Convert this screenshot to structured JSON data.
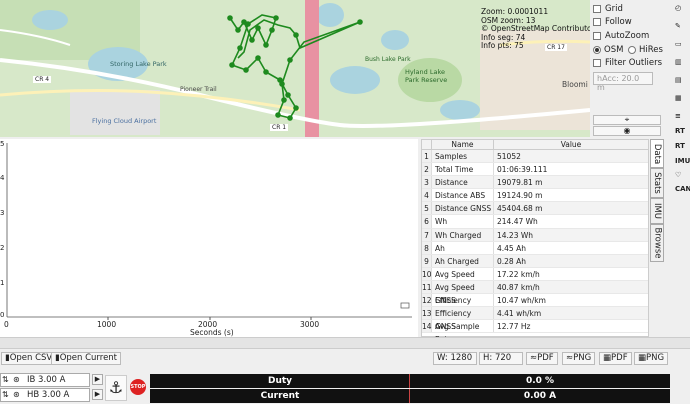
{
  "map": {
    "labels": [
      "Storing Lake Park",
      "CR 4",
      "Pioneer Trail",
      "Flying Cloud Airport",
      "Hyland Lake Park Reserve",
      "Bush Lake Park",
      "CR 1",
      "CR 17",
      "Bloomi"
    ],
    "info": [
      "Zoom: 0.0001011",
      "OSM zoom: 13",
      "© OpenStreetMap Contributors",
      "Info seg: 74",
      "Info pts: 75"
    ]
  },
  "controls": {
    "grid": "Grid",
    "follow": "Follow",
    "autozoom": "AutoZoom",
    "osm": "OSM",
    "hires": "HiRes",
    "filter": "Filter Outliers",
    "hacc": "hAcc: 20.0 m"
  },
  "plot": {
    "yticks": [
      "5",
      "4",
      "3",
      "2",
      "1",
      "0"
    ],
    "xticks": [
      "0",
      "1000",
      "2000",
      "3000"
    ],
    "xlabel": "Seconds (s)"
  },
  "table": {
    "headers": [
      "Name",
      "Value"
    ],
    "rows": [
      [
        "1",
        "Samples",
        "51052"
      ],
      [
        "2",
        "Total Time",
        "01:06:39.111"
      ],
      [
        "3",
        "Distance",
        "19079.81 m"
      ],
      [
        "4",
        "Distance ABS",
        "19124.90 m"
      ],
      [
        "5",
        "Distance GNSS",
        "45404.68 m"
      ],
      [
        "6",
        "Wh",
        "214.47 Wh"
      ],
      [
        "7",
        "Wh Charged",
        "14.23 Wh"
      ],
      [
        "8",
        "Ah",
        "4.45 Ah"
      ],
      [
        "9",
        "Ah Charged",
        "0.28 Ah"
      ],
      [
        "10",
        "Avg Speed",
        "17.22 km/h"
      ],
      [
        "11",
        "Avg Speed GNSS",
        "40.87 km/h"
      ],
      [
        "12",
        "Efficiency",
        "10.47 wh/km"
      ],
      [
        "13",
        "Efficiency GNSS",
        "4.41 wh/km"
      ],
      [
        "14",
        "Avg Sample Rate",
        "12.77 Hz"
      ]
    ]
  },
  "tabs": [
    "Data",
    "Stats",
    "IMU",
    "Browse"
  ],
  "rightbar": [
    "RT",
    "RT",
    "IMU",
    "CAN"
  ],
  "toolbar": {
    "open_csv": "Open CSV",
    "open_current": "Open Current",
    "w": "W: 1280",
    "h": "H: 720",
    "pdf1": "PDF",
    "png1": "PNG",
    "pdf2": "PDF",
    "png2": "PNG"
  },
  "bottom": {
    "ib": "IB 3.00 A",
    "hb": "HB 3.00 A",
    "stop": "STOP",
    "duty_label": "Duty",
    "duty_value": "0.0 %",
    "current_label": "Current",
    "current_value": "0.00 A"
  }
}
